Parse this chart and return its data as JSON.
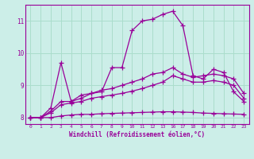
{
  "xlabel": "Windchill (Refroidissement éolien,°C)",
  "bg_color": "#cceee8",
  "line_color": "#990099",
  "grid_color": "#aaddcc",
  "ylim": [
    7.8,
    11.5
  ],
  "xtick_labels": [
    "0",
    "1",
    "2",
    "3",
    "4",
    "5",
    "6",
    "7",
    "8",
    "9",
    "10",
    "11",
    "12",
    "13",
    "16",
    "17",
    "18",
    "19",
    "20",
    "21",
    "22",
    "23"
  ],
  "ytick_positions": [
    8,
    9,
    10,
    11
  ],
  "line1_y": [
    8.0,
    8.0,
    8.3,
    9.7,
    8.5,
    8.7,
    8.75,
    8.8,
    9.55,
    9.55,
    10.7,
    11.0,
    11.05,
    11.2,
    11.3,
    10.85,
    9.3,
    9.2,
    9.5,
    9.4,
    8.8,
    8.5
  ],
  "line2_y": [
    8.0,
    8.0,
    8.2,
    8.5,
    8.5,
    8.6,
    8.75,
    8.85,
    8.9,
    9.0,
    9.1,
    9.2,
    9.35,
    9.4,
    9.55,
    9.35,
    9.25,
    9.3,
    9.35,
    9.3,
    9.2,
    8.75
  ],
  "line3_y": [
    8.0,
    8.0,
    8.15,
    8.4,
    8.45,
    8.5,
    8.6,
    8.65,
    8.7,
    8.75,
    8.82,
    8.9,
    9.0,
    9.1,
    9.3,
    9.2,
    9.1,
    9.1,
    9.15,
    9.1,
    9.0,
    8.6
  ],
  "line4_y": [
    8.0,
    8.0,
    8.0,
    8.05,
    8.08,
    8.1,
    8.1,
    8.12,
    8.13,
    8.14,
    8.15,
    8.16,
    8.17,
    8.18,
    8.18,
    8.17,
    8.16,
    8.14,
    8.13,
    8.12,
    8.11,
    8.1
  ]
}
